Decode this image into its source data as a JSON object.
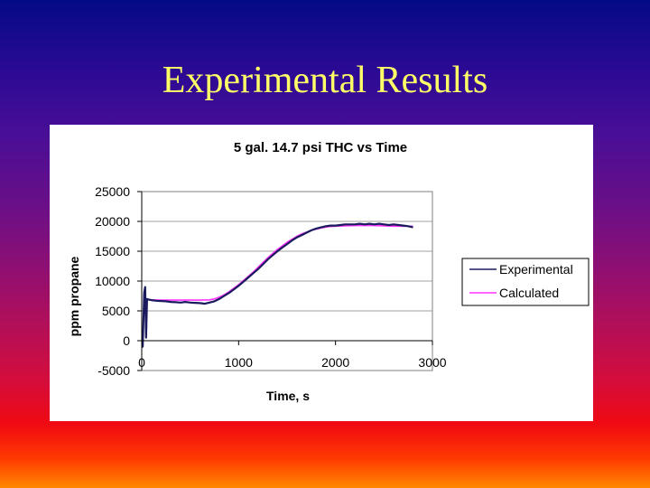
{
  "slide": {
    "title": "Experimental Results"
  },
  "chart_data": {
    "type": "line",
    "title": "5 gal. 14.7 psi THC vs Time",
    "xlabel": "Time, s",
    "ylabel": "ppm propane",
    "xlim": [
      0,
      3000
    ],
    "ylim": [
      -5000,
      25000
    ],
    "x_ticks": [
      0,
      1000,
      2000,
      3000
    ],
    "y_ticks": [
      -5000,
      0,
      5000,
      10000,
      15000,
      20000,
      25000
    ],
    "grid": "horizontal",
    "legend_position": "right",
    "series": [
      {
        "name": "Experimental",
        "color": "#1a1a5e",
        "x": [
          0,
          10,
          25,
          35,
          45,
          55,
          70,
          100,
          150,
          200,
          250,
          300,
          350,
          400,
          450,
          500,
          550,
          600,
          650,
          700,
          750,
          800,
          850,
          900,
          950,
          1000,
          1050,
          1100,
          1150,
          1200,
          1250,
          1300,
          1350,
          1400,
          1450,
          1500,
          1550,
          1600,
          1650,
          1700,
          1750,
          1800,
          1850,
          1900,
          1950,
          2000,
          2050,
          2100,
          2150,
          2200,
          2250,
          2300,
          2350,
          2400,
          2450,
          2500,
          2550,
          2600,
          2650,
          2700,
          2750,
          2800
        ],
        "y": [
          -1000,
          -1000,
          8000,
          9000,
          500,
          7000,
          6900,
          6800,
          6700,
          6650,
          6600,
          6500,
          6450,
          6400,
          6500,
          6400,
          6350,
          6300,
          6200,
          6400,
          6600,
          7000,
          7500,
          8000,
          8600,
          9200,
          9900,
          10600,
          11300,
          12000,
          12800,
          13600,
          14300,
          15000,
          15600,
          16200,
          16800,
          17300,
          17700,
          18100,
          18500,
          18800,
          19000,
          19200,
          19300,
          19300,
          19400,
          19500,
          19500,
          19500,
          19600,
          19500,
          19600,
          19500,
          19600,
          19500,
          19400,
          19500,
          19400,
          19300,
          19200,
          19000
        ]
      },
      {
        "name": "Calculated",
        "color": "#ff33ff",
        "x": [
          30,
          50,
          100,
          200,
          300,
          400,
          500,
          600,
          700,
          750,
          800,
          850,
          900,
          950,
          1000,
          1050,
          1100,
          1150,
          1200,
          1250,
          1300,
          1350,
          1400,
          1450,
          1500,
          1550,
          1600,
          1650,
          1700,
          1750,
          1800,
          1850,
          1900,
          1950,
          2000,
          2100,
          2200,
          2300,
          2400,
          2500,
          2600,
          2700,
          2800
        ],
        "y": [
          7000,
          6900,
          6850,
          6800,
          6800,
          6800,
          6800,
          6800,
          6850,
          7000,
          7300,
          7700,
          8200,
          8800,
          9400,
          10100,
          10800,
          11500,
          12300,
          13100,
          13900,
          14600,
          15300,
          15900,
          16500,
          17000,
          17500,
          17900,
          18200,
          18500,
          18700,
          18900,
          19050,
          19150,
          19200,
          19250,
          19300,
          19300,
          19300,
          19250,
          19200,
          19200,
          19200
        ]
      }
    ]
  }
}
